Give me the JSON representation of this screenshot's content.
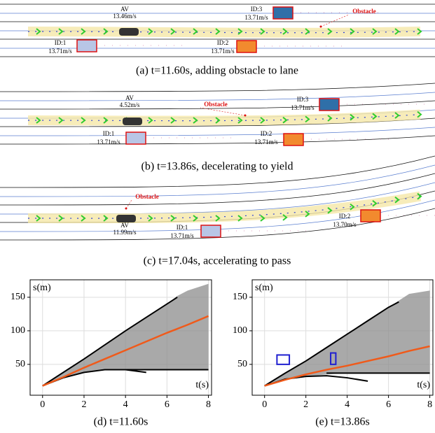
{
  "scenes": [
    {
      "caption": "(a) t=11.60s, adding obstacle to lane",
      "av": "AV",
      "av_speed": "13.46m/s",
      "obstacle": "Obstacle",
      "vehicles": [
        {
          "id": "ID:3",
          "speed": "13.71m/s"
        },
        {
          "id": "ID:1",
          "speed": "13.71m/s"
        },
        {
          "id": "ID:2",
          "speed": "13.71m/s"
        }
      ]
    },
    {
      "caption": "(b) t=13.86s, decelerating to yield",
      "av": "AV",
      "av_speed": "4.52m/s",
      "obstacle": "Obstacle",
      "vehicles": [
        {
          "id": "ID:3",
          "speed": "13.71m/s"
        },
        {
          "id": "ID:1",
          "speed": "13.71m/s"
        },
        {
          "id": "ID:2",
          "speed": "13.71m/s"
        }
      ]
    },
    {
      "caption": "(c) t=17.04s, accelerating to pass",
      "av": "AV",
      "av_speed": "11.99m/s",
      "obstacle": "Obstacle",
      "vehicles": [
        {
          "id": "ID:1",
          "speed": "13.71m/s"
        },
        {
          "id": "ID:2",
          "speed": "13.70m/s"
        }
      ]
    }
  ],
  "chart_data": [
    {
      "type": "line",
      "caption": "(d) t=11.60s",
      "xlabel": "t(s)",
      "ylabel": "s(m)",
      "xlim": [
        -0.6,
        8.15
      ],
      "ylim": [
        4,
        176
      ],
      "xticks": [
        0,
        2,
        4,
        6,
        8
      ],
      "yticks": [
        50,
        100,
        150
      ],
      "grid": true,
      "x": [
        0,
        1,
        2,
        3,
        4,
        5,
        6,
        6.5,
        7,
        8
      ],
      "band": {
        "color": "#8c8c8c",
        "upper": [
          18,
          38,
          58,
          79,
          100,
          120,
          140,
          152,
          160,
          170
        ],
        "lower": [
          18,
          30,
          38,
          42,
          42,
          42,
          42,
          42,
          42,
          42
        ]
      },
      "series": [
        {
          "color": "#000000",
          "values": [
            18,
            38,
            58,
            79,
            100,
            120,
            140,
            150,
            null,
            null
          ]
        },
        {
          "color": "#000000",
          "values": [
            18,
            30,
            38,
            42,
            42,
            38,
            null,
            null,
            null,
            null
          ]
        },
        {
          "color": "#000000",
          "values": [
            null,
            null,
            null,
            42,
            42,
            42,
            42,
            42,
            42,
            42
          ]
        },
        {
          "color": "#f05a1a",
          "values": [
            18,
            31,
            45,
            58,
            71,
            84,
            97,
            103,
            109,
            122
          ]
        }
      ]
    },
    {
      "type": "line",
      "caption": "(e) t=13.86s",
      "xlabel": "t(s)",
      "ylabel": "s(m)",
      "xlim": [
        -0.6,
        8.15
      ],
      "ylim": [
        4,
        176
      ],
      "xticks": [
        0,
        2,
        4,
        6,
        8
      ],
      "yticks": [
        50,
        100,
        150
      ],
      "grid": true,
      "x": [
        0,
        1,
        2,
        3,
        4,
        5,
        6,
        6.5,
        7,
        8
      ],
      "band": {
        "color": "#8c8c8c",
        "upper": [
          18,
          37,
          55,
          75,
          95,
          115,
          135,
          145,
          155,
          160
        ],
        "lower": [
          18,
          28,
          32,
          35,
          37,
          37,
          37,
          37,
          37,
          37
        ]
      },
      "series": [
        {
          "color": "#000000",
          "values": [
            18,
            37,
            55,
            75,
            95,
            115,
            135,
            143,
            null,
            null
          ]
        },
        {
          "color": "#000000",
          "values": [
            18,
            28,
            32,
            33,
            30,
            25,
            null,
            null,
            null,
            null
          ]
        },
        {
          "color": "#000000",
          "values": [
            null,
            null,
            null,
            37,
            37,
            37,
            37,
            37,
            37,
            37
          ]
        },
        {
          "color": "#f05a1a",
          "values": [
            18,
            27,
            35,
            42,
            48,
            55,
            62,
            66,
            70,
            77
          ]
        }
      ]
    }
  ]
}
